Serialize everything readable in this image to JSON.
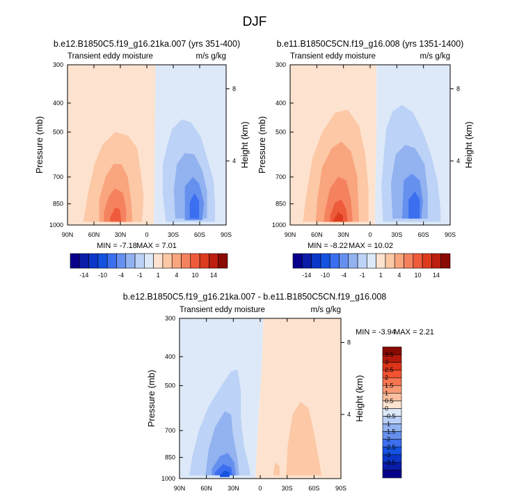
{
  "figure": {
    "title": "DJF"
  },
  "chart_data": [
    {
      "type": "heatmap",
      "title": "b.e12.B1850C5.f19_g16.21ka.007 (yrs 351-400)",
      "left_label": "Transient eddy moisture",
      "right_label": "m/s g/kg",
      "ylabel": "Pressure (mb)",
      "y2label": "Height (km)",
      "x_ticks": [
        "90N",
        "60N",
        "30N",
        "0",
        "30S",
        "60S",
        "90S"
      ],
      "y_ticks": [
        "300",
        "400",
        "500",
        "700",
        "850",
        "1000"
      ],
      "y2_ticks": [
        "8",
        "4"
      ],
      "min_text": "MIN =  -7.18",
      "max_text": "MAX =   7.01",
      "colorbar": {
        "tick_labels": [
          "-14",
          "-10",
          "-4",
          "-1",
          "1",
          "4",
          "10",
          "14"
        ],
        "colors": [
          "#08008a",
          "#0a1ca8",
          "#0b37c8",
          "#1452e0",
          "#3b6ff0",
          "#6690ee",
          "#92b2f0",
          "#bcd2f6",
          "#dde9f8",
          "#fde3cf",
          "#fcc8a6",
          "#f9a57e",
          "#f5825f",
          "#ee5b3b",
          "#dd3b1e",
          "#bd1e10",
          "#8a0a04"
        ]
      }
    },
    {
      "type": "heatmap",
      "title": "b.e11.B1850C5CN.f19_g16.008 (yrs 1351-1400)",
      "left_label": "Transient eddy moisture",
      "right_label": "m/s g/kg",
      "ylabel": "Pressure (mb)",
      "y2label": "Height (km)",
      "x_ticks": [
        "90N",
        "60N",
        "30N",
        "0",
        "30S",
        "60S",
        "90S"
      ],
      "y_ticks": [
        "300",
        "400",
        "500",
        "700",
        "850",
        "1000"
      ],
      "y2_ticks": [
        "8",
        "4"
      ],
      "min_text": "MIN =  -8.22",
      "max_text": "MAX =  10.02",
      "colorbar": {
        "tick_labels": [
          "-14",
          "-10",
          "-4",
          "-1",
          "1",
          "4",
          "10",
          "14"
        ],
        "colors": [
          "#08008a",
          "#0a1ca8",
          "#0b37c8",
          "#1452e0",
          "#3b6ff0",
          "#6690ee",
          "#92b2f0",
          "#bcd2f6",
          "#dde9f8",
          "#fde3cf",
          "#fcc8a6",
          "#f9a57e",
          "#f5825f",
          "#ee5b3b",
          "#dd3b1e",
          "#bd1e10",
          "#8a0a04"
        ]
      }
    },
    {
      "type": "heatmap",
      "title": "b.e12.B1850C5.f19_g16.21ka.007 - b.e11.B1850C5CN.f19_g16.008",
      "left_label": "Transient eddy moisture",
      "right_label": "m/s g/kg",
      "ylabel": "Pressure (mb)",
      "y2label": "Height (km)",
      "x_ticks": [
        "90N",
        "60N",
        "30N",
        "0",
        "30S",
        "60S",
        "90S"
      ],
      "y_ticks": [
        "300",
        "400",
        "500",
        "700",
        "850",
        "1000"
      ],
      "y2_ticks": [
        "8",
        "4"
      ],
      "min_text": "MIN =  -3.94",
      "max_text": "MAX =   2.21",
      "colorbar": {
        "tick_labels": [
          "3.5",
          "3",
          "2.5",
          "2",
          "1.5",
          "1",
          "0.5",
          "0",
          "-0.5",
          "-1",
          "-1.5",
          "-2",
          "-2.5",
          "-3",
          "-3.5"
        ],
        "colors": [
          "#8a0a04",
          "#b51a0c",
          "#dd3418",
          "#f25330",
          "#f77550",
          "#f99a75",
          "#fbbfa0",
          "#fde3cf",
          "#dde9f8",
          "#b9d0f6",
          "#92b2f0",
          "#6690ee",
          "#3b6ff0",
          "#1452e0",
          "#0b37c8",
          "#0a1ca8",
          "#08008a"
        ]
      }
    }
  ]
}
